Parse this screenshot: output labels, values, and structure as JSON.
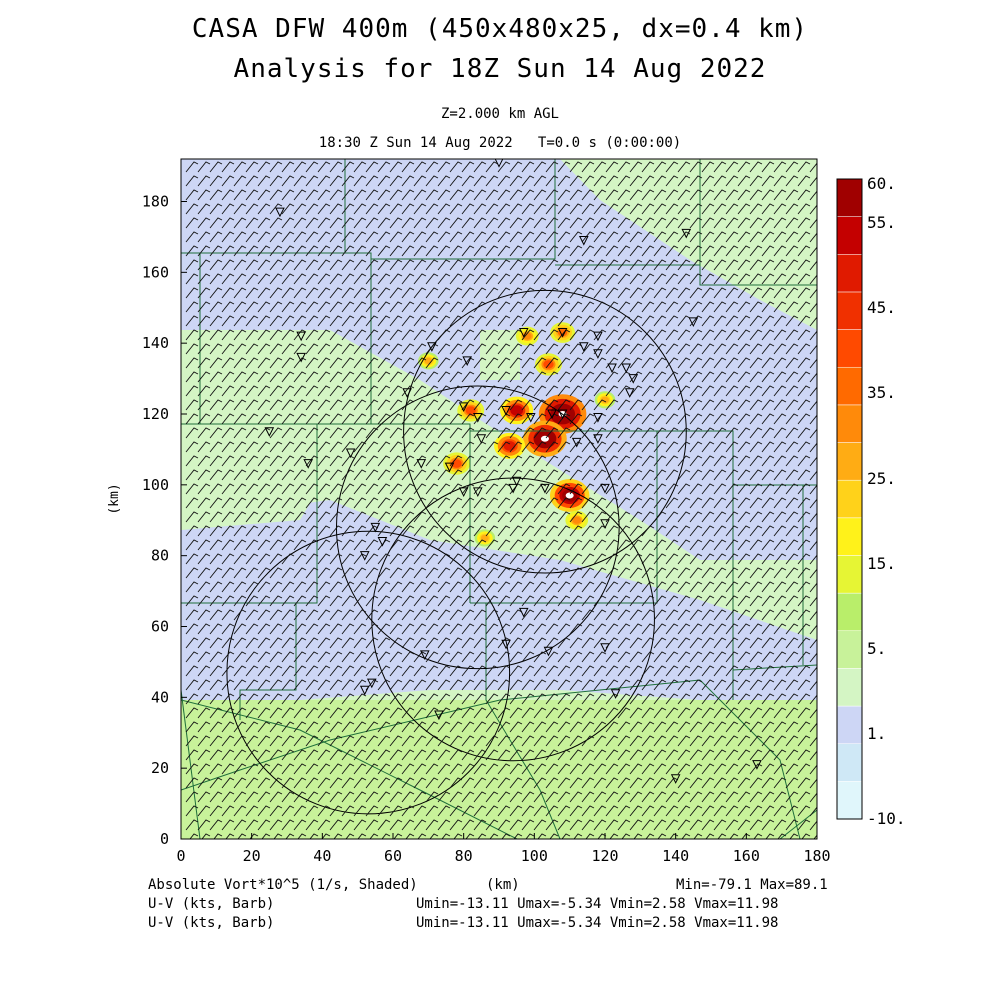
{
  "header": {
    "title_line1": "CASA DFW 400m (450x480x25, dx=0.4 km)",
    "title_line2": "Analysis for 18Z Sun 14 Aug 2022",
    "level": "Z=2.000 km AGL",
    "time": "18:30 Z Sun 14 Aug 2022   T=0.0 s (0:00:00)"
  },
  "footer": {
    "field1": "Absolute Vort*10^5 (1/s, Shaded)",
    "xunit": "(km)",
    "minmax": "Min=-79.1 Max=89.1",
    "field2": "U-V (kts, Barb)",
    "field3": "U-V (kts, Barb)",
    "uv_stats2": "Umin=-13.11 Umax=-5.34 Vmin=2.58 Vmax=11.98",
    "uv_stats3": "Umin=-13.11 Umax=-5.34 Vmin=2.58 Vmax=11.98"
  },
  "chart_data": {
    "type": "heatmap",
    "title": "CASA DFW 400m (450x480x25, dx=0.4 km)",
    "xlabel": "",
    "ylabel": "(km)",
    "xlim": [
      0,
      180
    ],
    "ylim": [
      0,
      192
    ],
    "x_ticks": [
      0,
      20,
      40,
      60,
      80,
      100,
      120,
      140,
      160,
      180
    ],
    "y_ticks": [
      0,
      20,
      40,
      60,
      80,
      100,
      120,
      140,
      160,
      180
    ],
    "colorbar": {
      "levels": [
        "60.",
        "55.",
        "45.",
        "35.",
        "25.",
        "15.",
        "5.",
        "1.",
        "-10."
      ],
      "colors": [
        "#e0f6fb",
        "#cfe8f6",
        "#cdd6f5",
        "#d4f5c4",
        "#c8f29a",
        "#b9ee6a",
        "#e6f534",
        "#fff21a",
        "#ffd21a",
        "#ffac14",
        "#ff8a0a",
        "#ff6a00",
        "#ff4a00",
        "#f03000",
        "#e01a00",
        "#c40000",
        "#a00000"
      ]
    },
    "radar_circles_km": [
      {
        "x": 103,
        "y": 115,
        "r": 40
      },
      {
        "x": 84,
        "y": 88,
        "r": 40
      },
      {
        "x": 94,
        "y": 62,
        "r": 40
      },
      {
        "x": 53,
        "y": 47,
        "r": 40
      }
    ],
    "vorticity_max_cells_km": [
      {
        "x": 108,
        "y": 120,
        "v": 89.1
      },
      {
        "x": 103,
        "y": 113,
        "v": 80
      },
      {
        "x": 110,
        "y": 97,
        "v": 70
      },
      {
        "x": 95,
        "y": 121,
        "v": 55
      },
      {
        "x": 93,
        "y": 111,
        "v": 50
      },
      {
        "x": 78,
        "y": 106,
        "v": 40
      },
      {
        "x": 82,
        "y": 121,
        "v": 40
      },
      {
        "x": 104,
        "y": 134,
        "v": 40
      },
      {
        "x": 108,
        "y": 143,
        "v": 35
      },
      {
        "x": 98,
        "y": 142,
        "v": 30
      },
      {
        "x": 112,
        "y": 90,
        "v": 30
      },
      {
        "x": 86,
        "y": 85,
        "v": 25
      },
      {
        "x": 70,
        "y": 135,
        "v": 25
      },
      {
        "x": 120,
        "y": 124,
        "v": 25
      }
    ],
    "wind_u_range_kts": [
      -13.11,
      -5.34
    ],
    "wind_v_range_kts": [
      2.58,
      11.98
    ],
    "vorticity_range": [
      -79.1,
      89.1
    ]
  }
}
